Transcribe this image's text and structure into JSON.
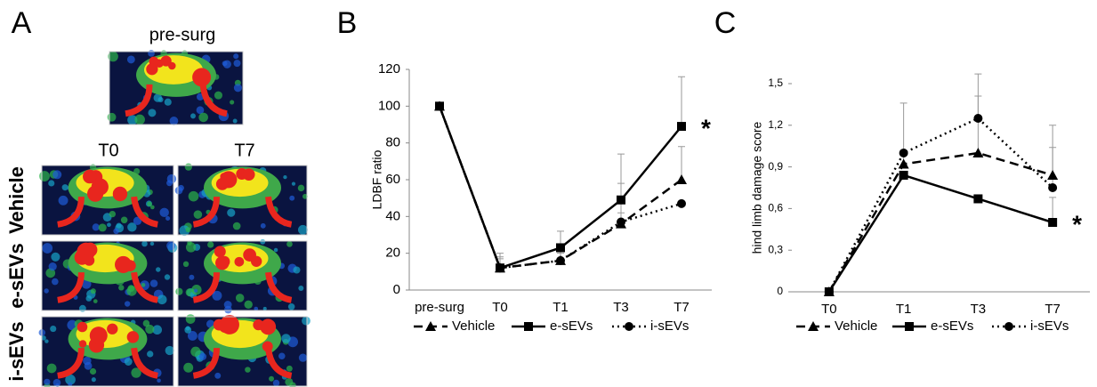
{
  "panel_a": {
    "label": "A",
    "top_image_label": "pre-surg",
    "columns": [
      "T0",
      "T7"
    ],
    "rows": [
      "Vehicle",
      "e-sEVs",
      "i-sEVs"
    ]
  },
  "chart_data": [
    {
      "type": "line",
      "panel": "B",
      "y_label": "LDBF ratio",
      "categories": [
        "pre-surg",
        "T0",
        "T1",
        "T3",
        "T7"
      ],
      "ylim": [
        0,
        120
      ],
      "yticks": [
        0,
        20,
        40,
        60,
        80,
        100,
        120
      ],
      "series": [
        {
          "name": "Vehicle",
          "color": "#000000",
          "dash": "dashed",
          "marker": "triangle",
          "values": [
            100,
            12,
            16,
            36,
            60
          ],
          "errors": [
            null,
            6,
            5,
            22,
            18
          ]
        },
        {
          "name": "e-sEVs",
          "color": "#000000",
          "dash": "solid",
          "marker": "square",
          "values": [
            100,
            12,
            23,
            49,
            89
          ],
          "errors": [
            null,
            8,
            9,
            25,
            27
          ]
        },
        {
          "name": "i-sEVs",
          "color": "#000000",
          "dash": "dotted",
          "marker": "circle",
          "values": [
            100,
            12,
            16,
            37,
            47
          ],
          "errors": [
            null,
            5,
            4,
            5,
            null
          ]
        }
      ],
      "annotation": "*"
    },
    {
      "type": "line",
      "panel": "C",
      "y_label": "hind limb damage score",
      "categories": [
        "T0",
        "T1",
        "T3",
        "T7"
      ],
      "ylim": [
        0,
        1.5
      ],
      "yticks": [
        0,
        {
          "value": 0.3,
          "label": "0,3"
        },
        {
          "value": 0.6,
          "label": "0,6"
        },
        {
          "value": 0.9,
          "label": "0,9"
        },
        {
          "value": 1.2,
          "label": "1,2"
        },
        {
          "value": 1.5,
          "label": "1,5"
        }
      ],
      "series": [
        {
          "name": "Vehicle",
          "color": "#000000",
          "dash": "dashed",
          "marker": "triangle",
          "values": [
            0,
            0.92,
            1.0,
            0.84
          ],
          "errors": [
            null,
            0.1,
            0.41,
            0.2
          ]
        },
        {
          "name": "e-sEVs",
          "color": "#000000",
          "dash": "solid",
          "marker": "square",
          "values": [
            0,
            0.84,
            0.67,
            0.5
          ],
          "errors": [
            null,
            null,
            null,
            0.18
          ]
        },
        {
          "name": "i-sEVs",
          "color": "#000000",
          "dash": "dotted",
          "marker": "circle",
          "values": [
            0,
            1.0,
            1.25,
            0.75
          ],
          "errors": [
            null,
            0.36,
            0.32,
            0.45
          ]
        }
      ],
      "annotation": "*"
    }
  ]
}
